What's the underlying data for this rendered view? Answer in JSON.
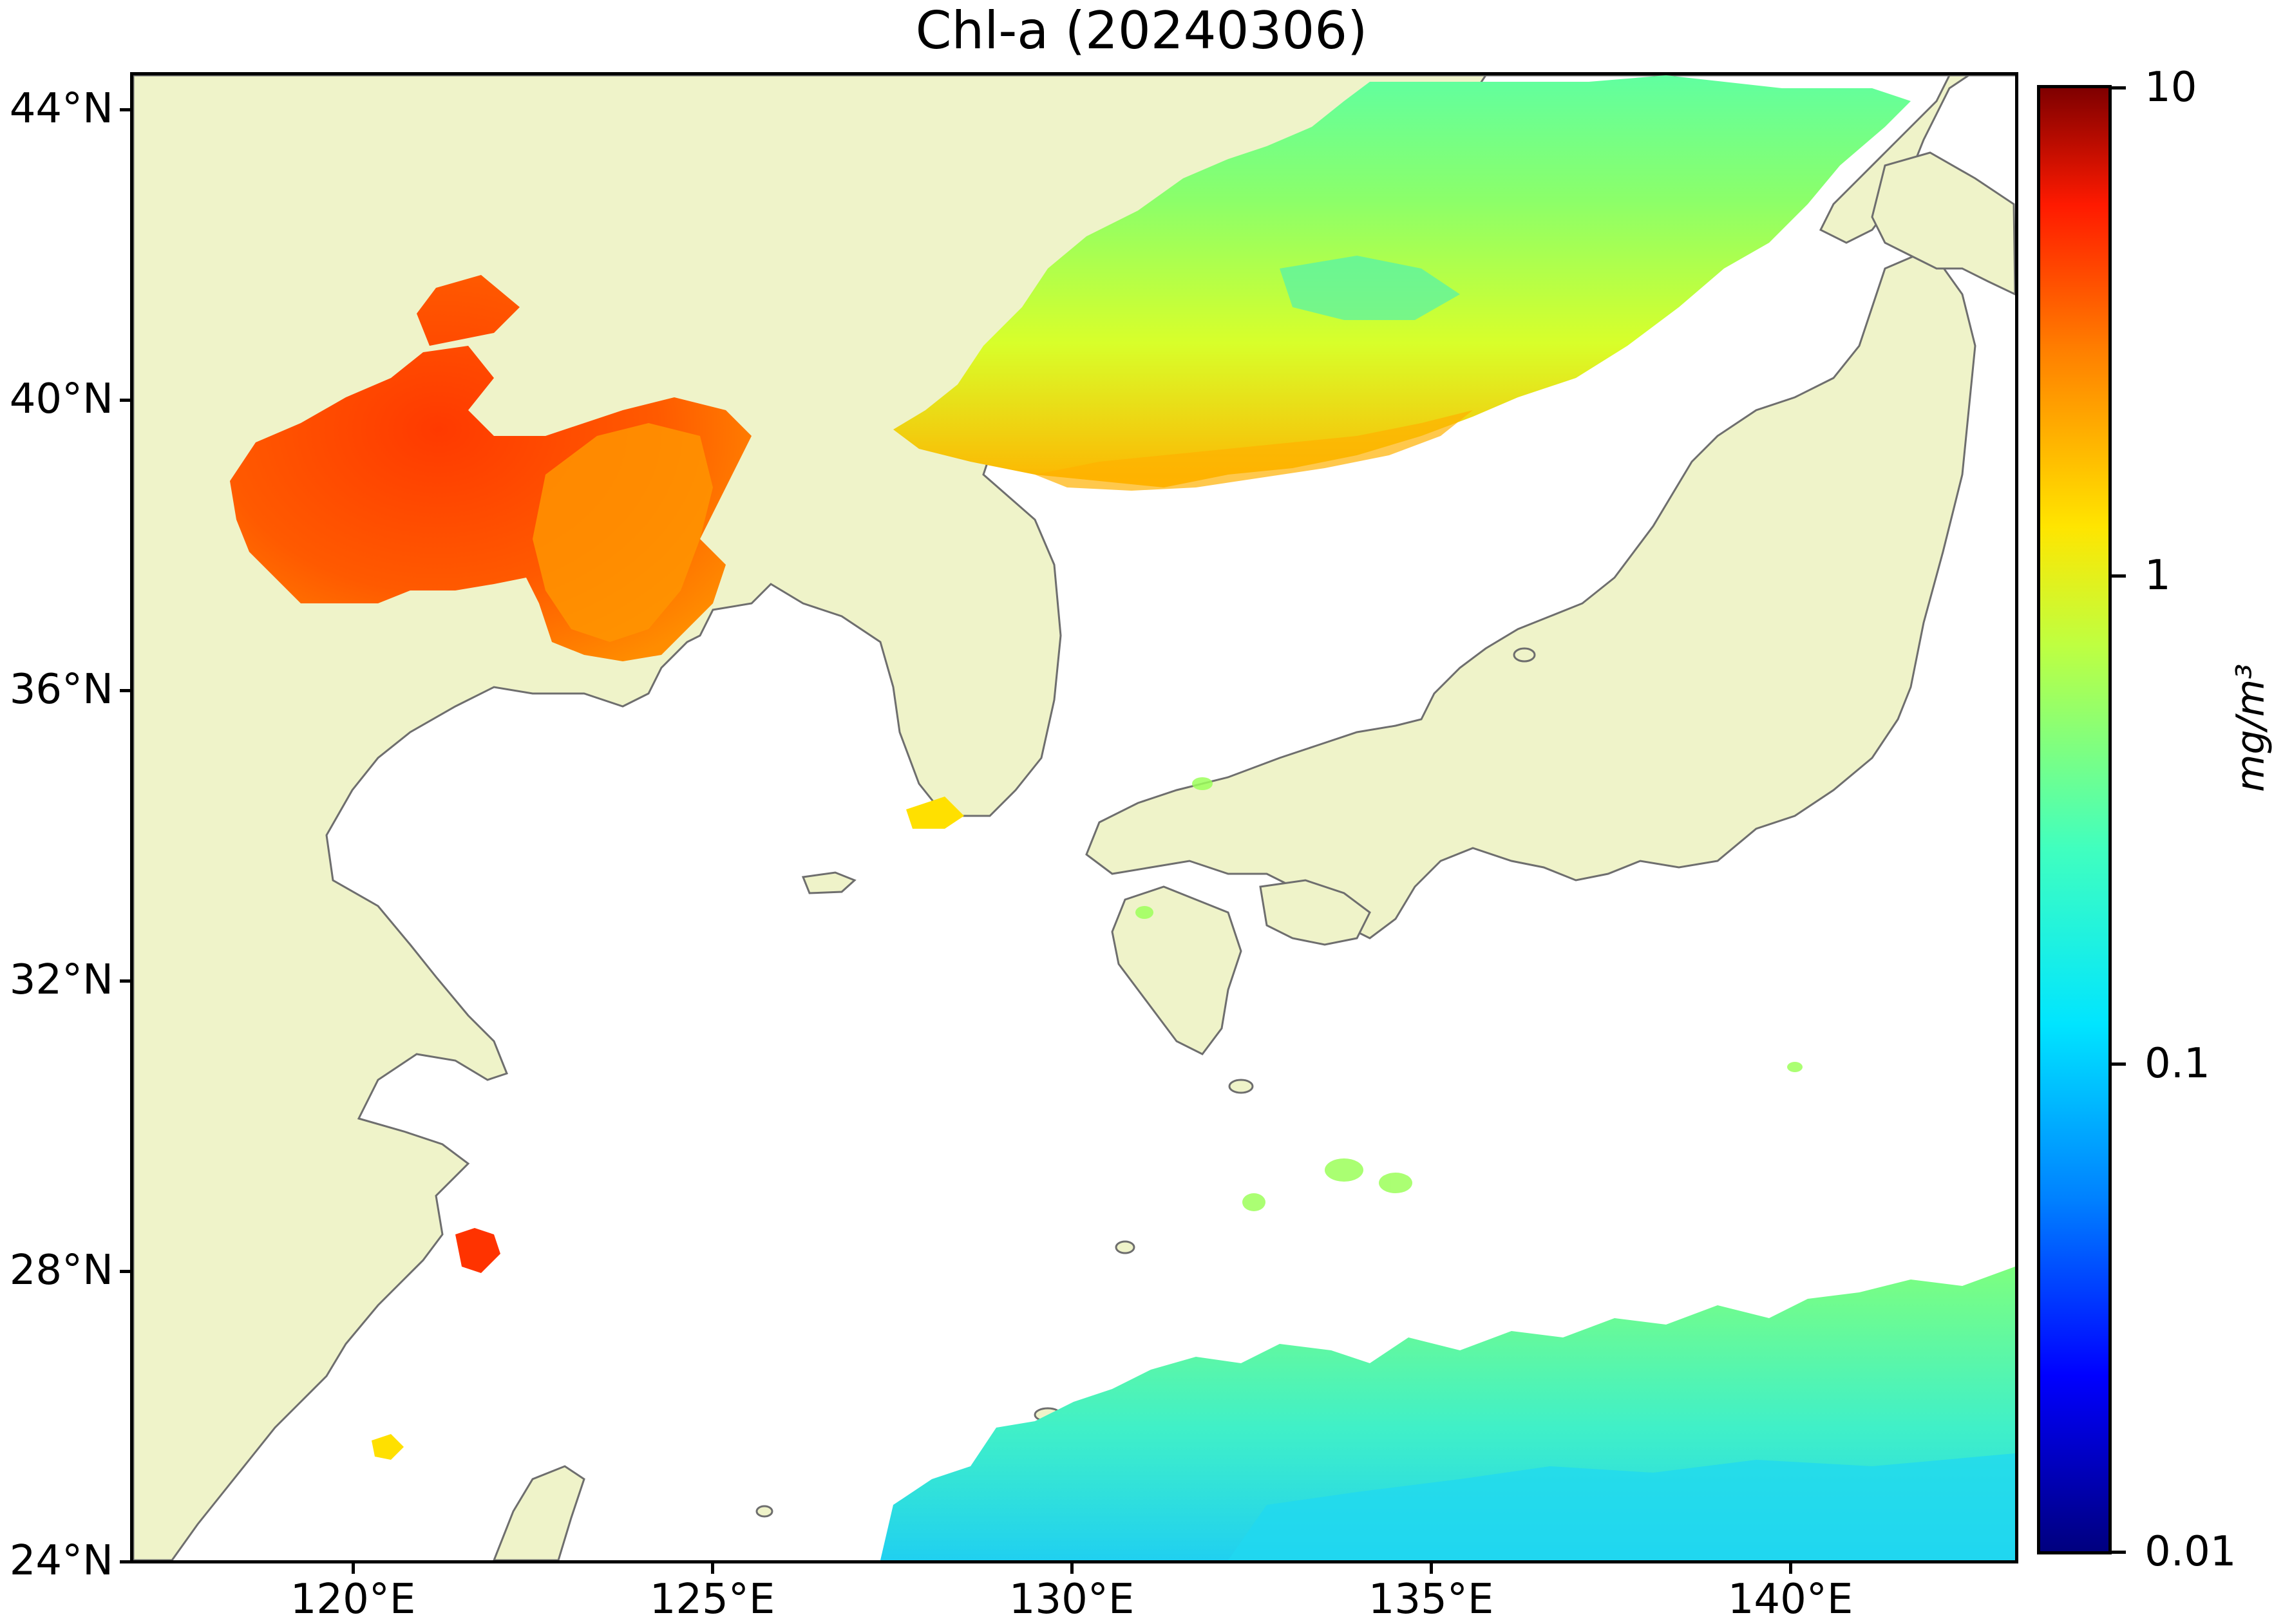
{
  "title": "Chl-a (20240306)",
  "map": {
    "latitude_labels": [
      "44°N",
      "40°N",
      "36°N",
      "32°N",
      "28°N",
      "24°N"
    ],
    "longitude_labels": [
      "120°E",
      "125°E",
      "130°E",
      "135°E",
      "140°E"
    ],
    "extent": {
      "lon_min": 116.9,
      "lon_max": 143.1,
      "lat_min": 24.0,
      "lat_max": 44.5
    },
    "land_color": "#eff3c9",
    "no_data_color": "#ffffff",
    "coastline_color": "#6e6e6e"
  },
  "colorbar": {
    "scale": "log",
    "range": [
      0.01,
      10
    ],
    "tick_labels": [
      "10",
      "1",
      "0.1",
      "0.01"
    ],
    "unit_label": "mg/m³",
    "colormap": "jet"
  }
}
